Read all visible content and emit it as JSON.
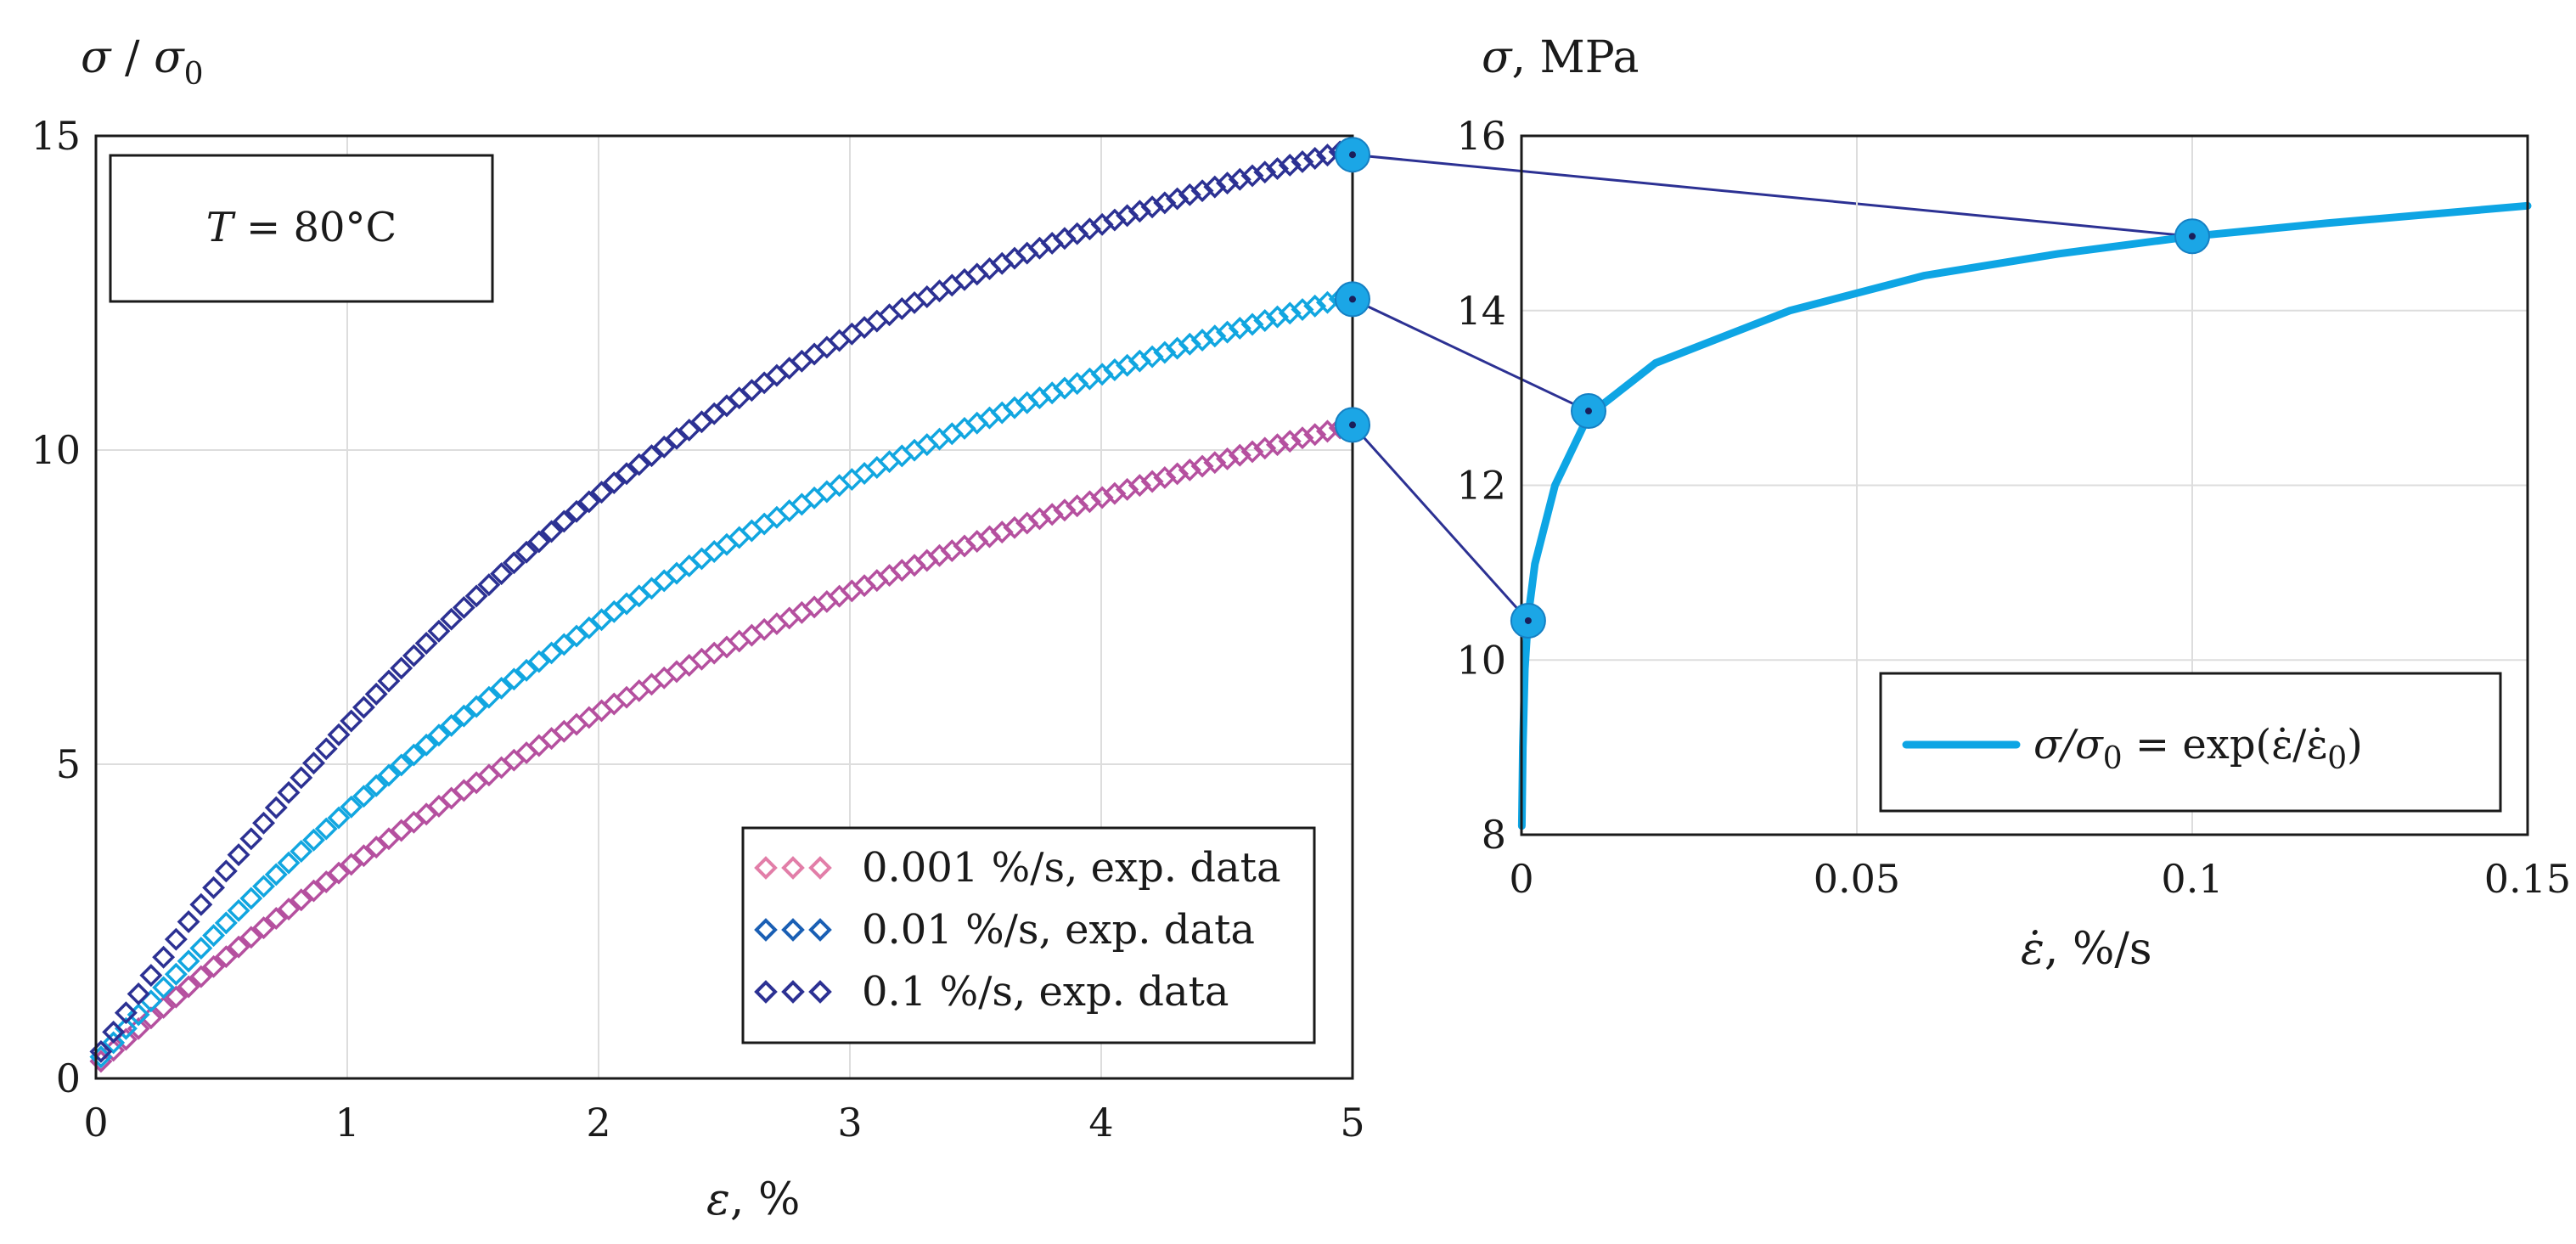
{
  "chart_data": [
    {
      "type": "scatter",
      "ylabel_var": "σ",
      "ylabel_sep": " / ",
      "ylabel_base": "σ",
      "ylabel_sub": "0",
      "xlabel_var": "ε",
      "xlabel_unit": ", %",
      "xlim": [
        0,
        5
      ],
      "ylim": [
        0,
        15
      ],
      "xticks": [
        0,
        1,
        2,
        3,
        4,
        5
      ],
      "yticks": [
        0,
        5,
        10,
        15
      ],
      "grid": true,
      "annotation": {
        "var": "T",
        "text": " = 80°C"
      },
      "legend_position": "bottom-right",
      "series": [
        {
          "name": "0.001 %/s, exp. data",
          "color": "#b5509f",
          "legend_color": "#e27ea8",
          "asymptote": 14.5,
          "rate": 0.25,
          "start": 0.2,
          "final": 10.4
        },
        {
          "name": "0.01 %/s, exp. data",
          "color": "#11a6e0",
          "legend_color": "#1a5fb4",
          "asymptote": 16.2,
          "rate": 0.29,
          "start": 0.25,
          "final": 12.4
        },
        {
          "name": "0.1 %/s, exp. data",
          "color": "#2c3193",
          "legend_color": "#2c3193",
          "asymptote": 17.5,
          "rate": 0.37,
          "start": 0.3,
          "final": 14.7
        }
      ],
      "marker": "diamond-open",
      "points_per_series": 100
    },
    {
      "type": "line",
      "ylabel_var": "σ",
      "ylabel_unit": ", MPa",
      "xlabel_var": "ε̇",
      "xlabel_unit": ", %/s",
      "xlim": [
        0,
        0.15
      ],
      "ylim": [
        8,
        16
      ],
      "xticks": [
        0,
        0.05,
        0.1,
        0.15
      ],
      "xtick_labels": [
        "0",
        "0.05",
        "0.1",
        "0.15"
      ],
      "yticks": [
        8,
        10,
        12,
        14,
        16
      ],
      "grid": true,
      "legend_position": "bottom-right",
      "series": [
        {
          "name": "σ/σ0 = exp(ε̇/ε̇0)",
          "legend_main": "σ/σ",
          "legend_sub": "0",
          "legend_mid": " = exp(ε̇/ε̇",
          "legend_end": ")",
          "color": "#0ea5e4",
          "curve": "log-like",
          "x": [
            5e-05,
            0.0002,
            0.0005,
            0.001,
            0.002,
            0.005,
            0.01,
            0.02,
            0.04,
            0.06,
            0.08,
            0.1,
            0.12,
            0.15
          ],
          "y": [
            8.1,
            9.0,
            9.9,
            10.5,
            11.1,
            12.0,
            12.8,
            13.4,
            14.0,
            14.4,
            14.65,
            14.85,
            15.0,
            15.2
          ]
        }
      ],
      "highlight_points": [
        {
          "x": 0.001,
          "y": 10.45
        },
        {
          "x": 0.01,
          "y": 12.85
        },
        {
          "x": 0.1,
          "y": 14.85
        }
      ],
      "connector_color": "#2c3193"
    }
  ]
}
